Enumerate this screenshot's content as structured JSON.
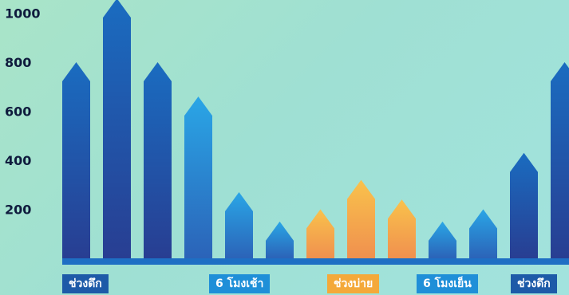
{
  "chart_data": {
    "type": "bar",
    "title": "",
    "xlabel": "",
    "ylabel": "",
    "ylim": [
      0,
      1050
    ],
    "yticks": [
      200,
      400,
      600,
      800,
      1000
    ],
    "values": [
      800,
      1060,
      800,
      660,
      270,
      150,
      200,
      320,
      240,
      150,
      200,
      430,
      800
    ],
    "bar_colors": [
      "dark-blue",
      "dark-blue",
      "dark-blue",
      "light-blue",
      "light-blue",
      "light-blue",
      "orange",
      "orange",
      "orange",
      "light-blue",
      "light-blue",
      "dark-blue",
      "dark-blue"
    ],
    "period_labels": [
      {
        "text": "ช่วงดึก",
        "color": "#1d5aa8"
      },
      {
        "text": "6 โมงเช้า",
        "color": "#1f8fd8"
      },
      {
        "text": "ช่วงบ่าย",
        "color": "#f4a93a"
      },
      {
        "text": "6 โมงเย็น",
        "color": "#1f8fd8"
      },
      {
        "text": "ช่วงดึก",
        "color": "#1d5aa8"
      }
    ]
  },
  "colors": {
    "baseline": "#1e6fc4",
    "dark_blue_top": "#1a6cc0",
    "dark_blue_bottom": "#283e92",
    "light_blue_top": "#2aa6e6",
    "light_blue_bottom": "#2b63b8",
    "orange_top": "#f9c24c",
    "orange_bottom": "#f0904e"
  }
}
